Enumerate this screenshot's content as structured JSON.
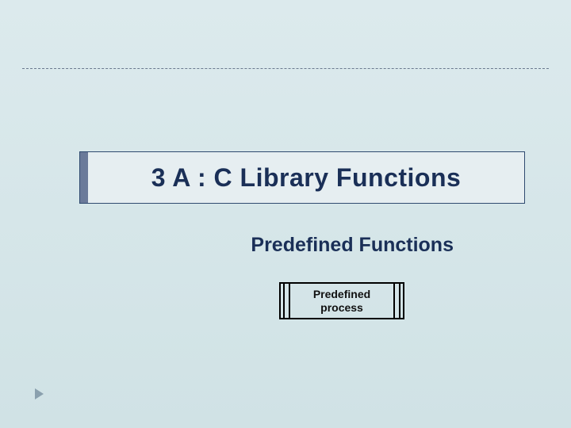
{
  "slide": {
    "background_gradient_top": "#dceaed",
    "background_gradient_bottom": "#d0e2e5",
    "dashed_line_color": "#6b7a8f",
    "title_bar": {
      "text": "3 A : C Library Functions",
      "text_color": "#1a2f57",
      "font_size_pt": 32,
      "border_color": "#2f4a6f",
      "accent_color": "#6b7a9a",
      "background_color": "#e6eef1"
    },
    "subtitle": {
      "text": "Predefined Functions",
      "text_color": "#1a2f57",
      "font_size_pt": 25
    },
    "process_box": {
      "type": "flowchart-predefined-process",
      "label_line1": "Predefined",
      "label_line2": "process",
      "border_color": "#000000",
      "font_size_pt": 14
    },
    "corner_arrow_color": "#8aa0ae"
  }
}
